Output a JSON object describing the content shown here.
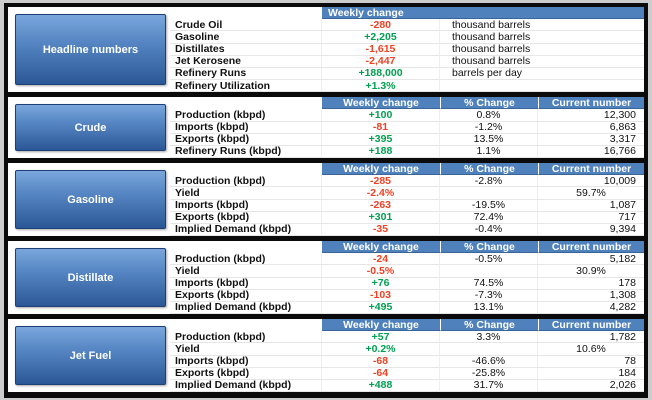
{
  "chart_data": {
    "type": "table",
    "columns": [
      "Weekly change",
      "% Change",
      "Current number"
    ],
    "sections": [
      {
        "label": "Headline numbers",
        "rows": [
          {
            "label": "Crude Oil",
            "weekly": "-280",
            "unit": "thousand barrels"
          },
          {
            "label": "Gasoline",
            "weekly": "+2,205",
            "unit": "thousand barrels"
          },
          {
            "label": "Distillates",
            "weekly": "-1,615",
            "unit": "thousand barrels"
          },
          {
            "label": "Jet Kerosene",
            "weekly": "-2,447",
            "unit": "thousand barrels"
          },
          {
            "label": "Refinery Runs",
            "weekly": "+188,000",
            "unit": "barrels per day"
          },
          {
            "label": "Refinery Utilization",
            "weekly": "+1.3%",
            "unit": ""
          }
        ]
      },
      {
        "label": "Crude",
        "rows": [
          {
            "label": "Production (kbpd)",
            "weekly": "+100",
            "pct": "0.8%",
            "current": "12,300"
          },
          {
            "label": "Imports (kbpd)",
            "weekly": "-81",
            "pct": "-1.2%",
            "current": "6,863"
          },
          {
            "label": "Exports (kbpd)",
            "weekly": "+395",
            "pct": "13.5%",
            "current": "3,317"
          },
          {
            "label": "Refinery Runs (kbpd)",
            "weekly": "+188",
            "pct": "1.1%",
            "current": "16,766"
          }
        ]
      },
      {
        "label": "Gasoline",
        "rows": [
          {
            "label": "Production (kbpd)",
            "weekly": "-285",
            "pct": "-2.8%",
            "current": "10,009"
          },
          {
            "label": "Yield",
            "weekly": "-2.4%",
            "pct": "",
            "current": "59.7%"
          },
          {
            "label": "Imports (kbpd)",
            "weekly": "-263",
            "pct": "-19.5%",
            "current": "1,087"
          },
          {
            "label": "Exports (kbpd)",
            "weekly": "+301",
            "pct": "72.4%",
            "current": "717"
          },
          {
            "label": "Implied Demand (kbpd)",
            "weekly": "-35",
            "pct": "-0.4%",
            "current": "9,394"
          }
        ]
      },
      {
        "label": "Distillate",
        "rows": [
          {
            "label": "Production (kbpd)",
            "weekly": "-24",
            "pct": "-0.5%",
            "current": "5,182"
          },
          {
            "label": "Yield",
            "weekly": "-0.5%",
            "pct": "",
            "current": "30.9%"
          },
          {
            "label": "Imports (kbpd)",
            "weekly": "+76",
            "pct": "74.5%",
            "current": "178"
          },
          {
            "label": "Exports (kbpd)",
            "weekly": "-103",
            "pct": "-7.3%",
            "current": "1,308"
          },
          {
            "label": "Implied Demand (kbpd)",
            "weekly": "+495",
            "pct": "13.1%",
            "current": "4,282"
          }
        ]
      },
      {
        "label": "Jet Fuel",
        "rows": [
          {
            "label": "Production (kbpd)",
            "weekly": "+57",
            "pct": "3.3%",
            "current": "1,782"
          },
          {
            "label": "Yield",
            "weekly": "+0.2%",
            "pct": "",
            "current": "10.6%"
          },
          {
            "label": "Imports (kbpd)",
            "weekly": "-68",
            "pct": "-46.6%",
            "current": "78"
          },
          {
            "label": "Exports (kbpd)",
            "weekly": "-64",
            "pct": "-25.8%",
            "current": "184"
          },
          {
            "label": "Implied Demand (kbpd)",
            "weekly": "+488",
            "pct": "31.7%",
            "current": "2,026"
          }
        ]
      }
    ]
  },
  "colors": {
    "positive": "#00a050",
    "negative": "#f04124",
    "header_blue": "#4f81bd",
    "box_blue_light": "#7aa6dc",
    "box_blue_dark": "#2b5796"
  }
}
